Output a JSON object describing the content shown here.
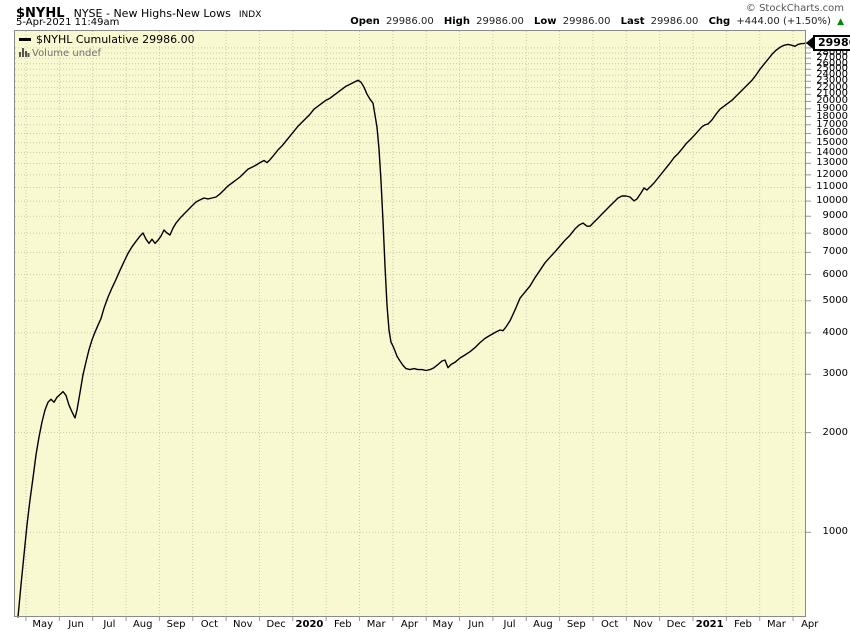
{
  "header": {
    "symbol": "$NYHL",
    "name": "NYSE - New Highs-New Lows",
    "exchange": "INDX",
    "datetime": "5-Apr-2021 11:49am",
    "copyright": "© StockCharts.com",
    "quote": {
      "open_label": "Open",
      "open": "29986.00",
      "high_label": "High",
      "high": "29986.00",
      "low_label": "Low",
      "low": "29986.00",
      "last_label": "Last",
      "last": "29986.00",
      "chg_label": "Chg",
      "chg": "+444.00 (+1.50%)",
      "direction_icon": "▲"
    }
  },
  "legend": {
    "series_label": "$NYHL Cumulative",
    "series_value": "29986.00",
    "volume_label": "Volume undef"
  },
  "price_tag": "29986.00",
  "colors": {
    "plot_bg": "#F9F9D1",
    "plot_border": "#8a8a8a",
    "grid": "#C9C9AC",
    "tick": "#999988",
    "line": "#000000",
    "up_green": "#008800",
    "muted_text": "#707070"
  },
  "chart_data": {
    "type": "line",
    "title": "$NYHL Cumulative",
    "series_name": "$NYHL Cumulative",
    "y_scale": "log",
    "ylim": [
      555,
      32850
    ],
    "last_value": 29986,
    "grid": true,
    "y_ticks": [
      1000,
      2000,
      3000,
      4000,
      5000,
      6000,
      7000,
      8000,
      9000,
      10000,
      11000,
      12000,
      13000,
      14000,
      15000,
      16000,
      17000,
      18000,
      19000,
      20000,
      21000,
      22000,
      23000,
      24000,
      25000,
      26000,
      27000,
      28000,
      29000
    ],
    "x_ticks": [
      {
        "label": "May",
        "bold": false
      },
      {
        "label": "Jun",
        "bold": false
      },
      {
        "label": "Jul",
        "bold": false
      },
      {
        "label": "Aug",
        "bold": false
      },
      {
        "label": "Sep",
        "bold": false
      },
      {
        "label": "Oct",
        "bold": false
      },
      {
        "label": "Nov",
        "bold": false
      },
      {
        "label": "Dec",
        "bold": false
      },
      {
        "label": "2020",
        "bold": true
      },
      {
        "label": "Feb",
        "bold": false
      },
      {
        "label": "Mar",
        "bold": false
      },
      {
        "label": "Apr",
        "bold": false
      },
      {
        "label": "May",
        "bold": false
      },
      {
        "label": "Jun",
        "bold": false
      },
      {
        "label": "Jul",
        "bold": false
      },
      {
        "label": "Aug",
        "bold": false
      },
      {
        "label": "Sep",
        "bold": false
      },
      {
        "label": "Oct",
        "bold": false
      },
      {
        "label": "Nov",
        "bold": false
      },
      {
        "label": "Dec",
        "bold": false
      },
      {
        "label": "2021",
        "bold": true
      },
      {
        "label": "Feb",
        "bold": false
      },
      {
        "label": "Mar",
        "bold": false
      },
      {
        "label": "Apr",
        "bold": false
      }
    ],
    "points": [
      [
        4,
        555
      ],
      [
        7,
        694
      ],
      [
        10,
        855
      ],
      [
        13,
        1053
      ],
      [
        16,
        1253
      ],
      [
        19,
        1460
      ],
      [
        22,
        1713
      ],
      [
        25,
        1940
      ],
      [
        28,
        2153
      ],
      [
        31,
        2340
      ],
      [
        34,
        2470
      ],
      [
        37,
        2522
      ],
      [
        40,
        2470
      ],
      [
        43,
        2556
      ],
      [
        46,
        2607
      ],
      [
        49,
        2660
      ],
      [
        52,
        2590
      ],
      [
        55,
        2420
      ],
      [
        58,
        2310
      ],
      [
        61,
        2215
      ],
      [
        63,
        2340
      ],
      [
        66,
        2642
      ],
      [
        69,
        2990
      ],
      [
        72,
        3270
      ],
      [
        75,
        3560
      ],
      [
        78,
        3810
      ],
      [
        81,
        4020
      ],
      [
        84,
        4220
      ],
      [
        87,
        4420
      ],
      [
        90,
        4750
      ],
      [
        94,
        5130
      ],
      [
        98,
        5470
      ],
      [
        102,
        5800
      ],
      [
        106,
        6180
      ],
      [
        110,
        6560
      ],
      [
        114,
        6950
      ],
      [
        118,
        7280
      ],
      [
        122,
        7560
      ],
      [
        126,
        7840
      ],
      [
        129,
        8010
      ],
      [
        132,
        7670
      ],
      [
        135,
        7450
      ],
      [
        138,
        7670
      ],
      [
        141,
        7450
      ],
      [
        144,
        7620
      ],
      [
        147,
        7840
      ],
      [
        150,
        8180
      ],
      [
        153,
        8010
      ],
      [
        156,
        7900
      ],
      [
        159,
        8290
      ],
      [
        162,
        8580
      ],
      [
        166,
        8880
      ],
      [
        170,
        9140
      ],
      [
        174,
        9400
      ],
      [
        178,
        9670
      ],
      [
        182,
        9940
      ],
      [
        186,
        10080
      ],
      [
        190,
        10220
      ],
      [
        194,
        10150
      ],
      [
        198,
        10220
      ],
      [
        202,
        10290
      ],
      [
        206,
        10510
      ],
      [
        210,
        10800
      ],
      [
        214,
        11110
      ],
      [
        218,
        11340
      ],
      [
        222,
        11580
      ],
      [
        226,
        11820
      ],
      [
        230,
        12150
      ],
      [
        234,
        12490
      ],
      [
        238,
        12660
      ],
      [
        242,
        12840
      ],
      [
        246,
        13070
      ],
      [
        250,
        13260
      ],
      [
        253,
        13070
      ],
      [
        256,
        13330
      ],
      [
        260,
        13790
      ],
      [
        264,
        14270
      ],
      [
        268,
        14680
      ],
      [
        272,
        15180
      ],
      [
        276,
        15710
      ],
      [
        280,
        16260
      ],
      [
        284,
        16830
      ],
      [
        288,
        17300
      ],
      [
        292,
        17790
      ],
      [
        296,
        18290
      ],
      [
        300,
        18940
      ],
      [
        304,
        19340
      ],
      [
        308,
        19750
      ],
      [
        312,
        20170
      ],
      [
        316,
        20450
      ],
      [
        320,
        20880
      ],
      [
        324,
        21320
      ],
      [
        328,
        21770
      ],
      [
        332,
        22230
      ],
      [
        336,
        22540
      ],
      [
        340,
        22850
      ],
      [
        344,
        23170
      ],
      [
        347,
        22850
      ],
      [
        350,
        22070
      ],
      [
        353,
        21030
      ],
      [
        356,
        20310
      ],
      [
        359,
        19750
      ],
      [
        361,
        18180
      ],
      [
        363,
        16710
      ],
      [
        365,
        14370
      ],
      [
        367,
        11510
      ],
      [
        369,
        8700
      ],
      [
        371,
        6370
      ],
      [
        373,
        4850
      ],
      [
        375,
        4080
      ],
      [
        377,
        3750
      ],
      [
        379,
        3650
      ],
      [
        381,
        3530
      ],
      [
        383,
        3400
      ],
      [
        386,
        3290
      ],
      [
        389,
        3190
      ],
      [
        392,
        3120
      ],
      [
        396,
        3100
      ],
      [
        400,
        3120
      ],
      [
        404,
        3100
      ],
      [
        408,
        3100
      ],
      [
        412,
        3080
      ],
      [
        416,
        3100
      ],
      [
        420,
        3140
      ],
      [
        424,
        3210
      ],
      [
        428,
        3290
      ],
      [
        431,
        3310
      ],
      [
        434,
        3140
      ],
      [
        437,
        3210
      ],
      [
        441,
        3260
      ],
      [
        446,
        3360
      ],
      [
        451,
        3430
      ],
      [
        456,
        3510
      ],
      [
        461,
        3610
      ],
      [
        466,
        3740
      ],
      [
        471,
        3850
      ],
      [
        476,
        3930
      ],
      [
        481,
        4010
      ],
      [
        486,
        4080
      ],
      [
        489,
        4060
      ],
      [
        492,
        4170
      ],
      [
        496,
        4350
      ],
      [
        501,
        4690
      ],
      [
        506,
        5090
      ],
      [
        511,
        5310
      ],
      [
        516,
        5540
      ],
      [
        521,
        5870
      ],
      [
        526,
        6180
      ],
      [
        531,
        6510
      ],
      [
        536,
        6770
      ],
      [
        541,
        7030
      ],
      [
        546,
        7320
      ],
      [
        551,
        7620
      ],
      [
        556,
        7890
      ],
      [
        561,
        8240
      ],
      [
        565,
        8460
      ],
      [
        569,
        8580
      ],
      [
        573,
        8400
      ],
      [
        576,
        8400
      ],
      [
        580,
        8640
      ],
      [
        584,
        8880
      ],
      [
        588,
        9140
      ],
      [
        592,
        9400
      ],
      [
        596,
        9670
      ],
      [
        600,
        9940
      ],
      [
        604,
        10220
      ],
      [
        608,
        10360
      ],
      [
        612,
        10360
      ],
      [
        616,
        10290
      ],
      [
        620,
        10010
      ],
      [
        623,
        10150
      ],
      [
        627,
        10580
      ],
      [
        630,
        10950
      ],
      [
        633,
        10800
      ],
      [
        636,
        11030
      ],
      [
        640,
        11340
      ],
      [
        644,
        11740
      ],
      [
        648,
        12150
      ],
      [
        652,
        12580
      ],
      [
        656,
        13020
      ],
      [
        660,
        13530
      ],
      [
        664,
        13900
      ],
      [
        668,
        14370
      ],
      [
        672,
        14890
      ],
      [
        676,
        15300
      ],
      [
        680,
        15760
      ],
      [
        684,
        16260
      ],
      [
        688,
        16760
      ],
      [
        691,
        17000
      ],
      [
        694,
        17090
      ],
      [
        698,
        17580
      ],
      [
        702,
        18290
      ],
      [
        706,
        18940
      ],
      [
        710,
        19340
      ],
      [
        714,
        19750
      ],
      [
        718,
        20170
      ],
      [
        722,
        20740
      ],
      [
        726,
        21320
      ],
      [
        730,
        21920
      ],
      [
        734,
        22540
      ],
      [
        738,
        23170
      ],
      [
        742,
        24010
      ],
      [
        746,
        25020
      ],
      [
        750,
        25900
      ],
      [
        754,
        26800
      ],
      [
        758,
        27740
      ],
      [
        762,
        28520
      ],
      [
        766,
        29120
      ],
      [
        770,
        29530
      ],
      [
        774,
        29730
      ],
      [
        778,
        29530
      ],
      [
        781,
        29330
      ],
      [
        784,
        29730
      ],
      [
        787,
        29870
      ],
      [
        790,
        29930
      ],
      [
        792,
        29986
      ]
    ]
  }
}
